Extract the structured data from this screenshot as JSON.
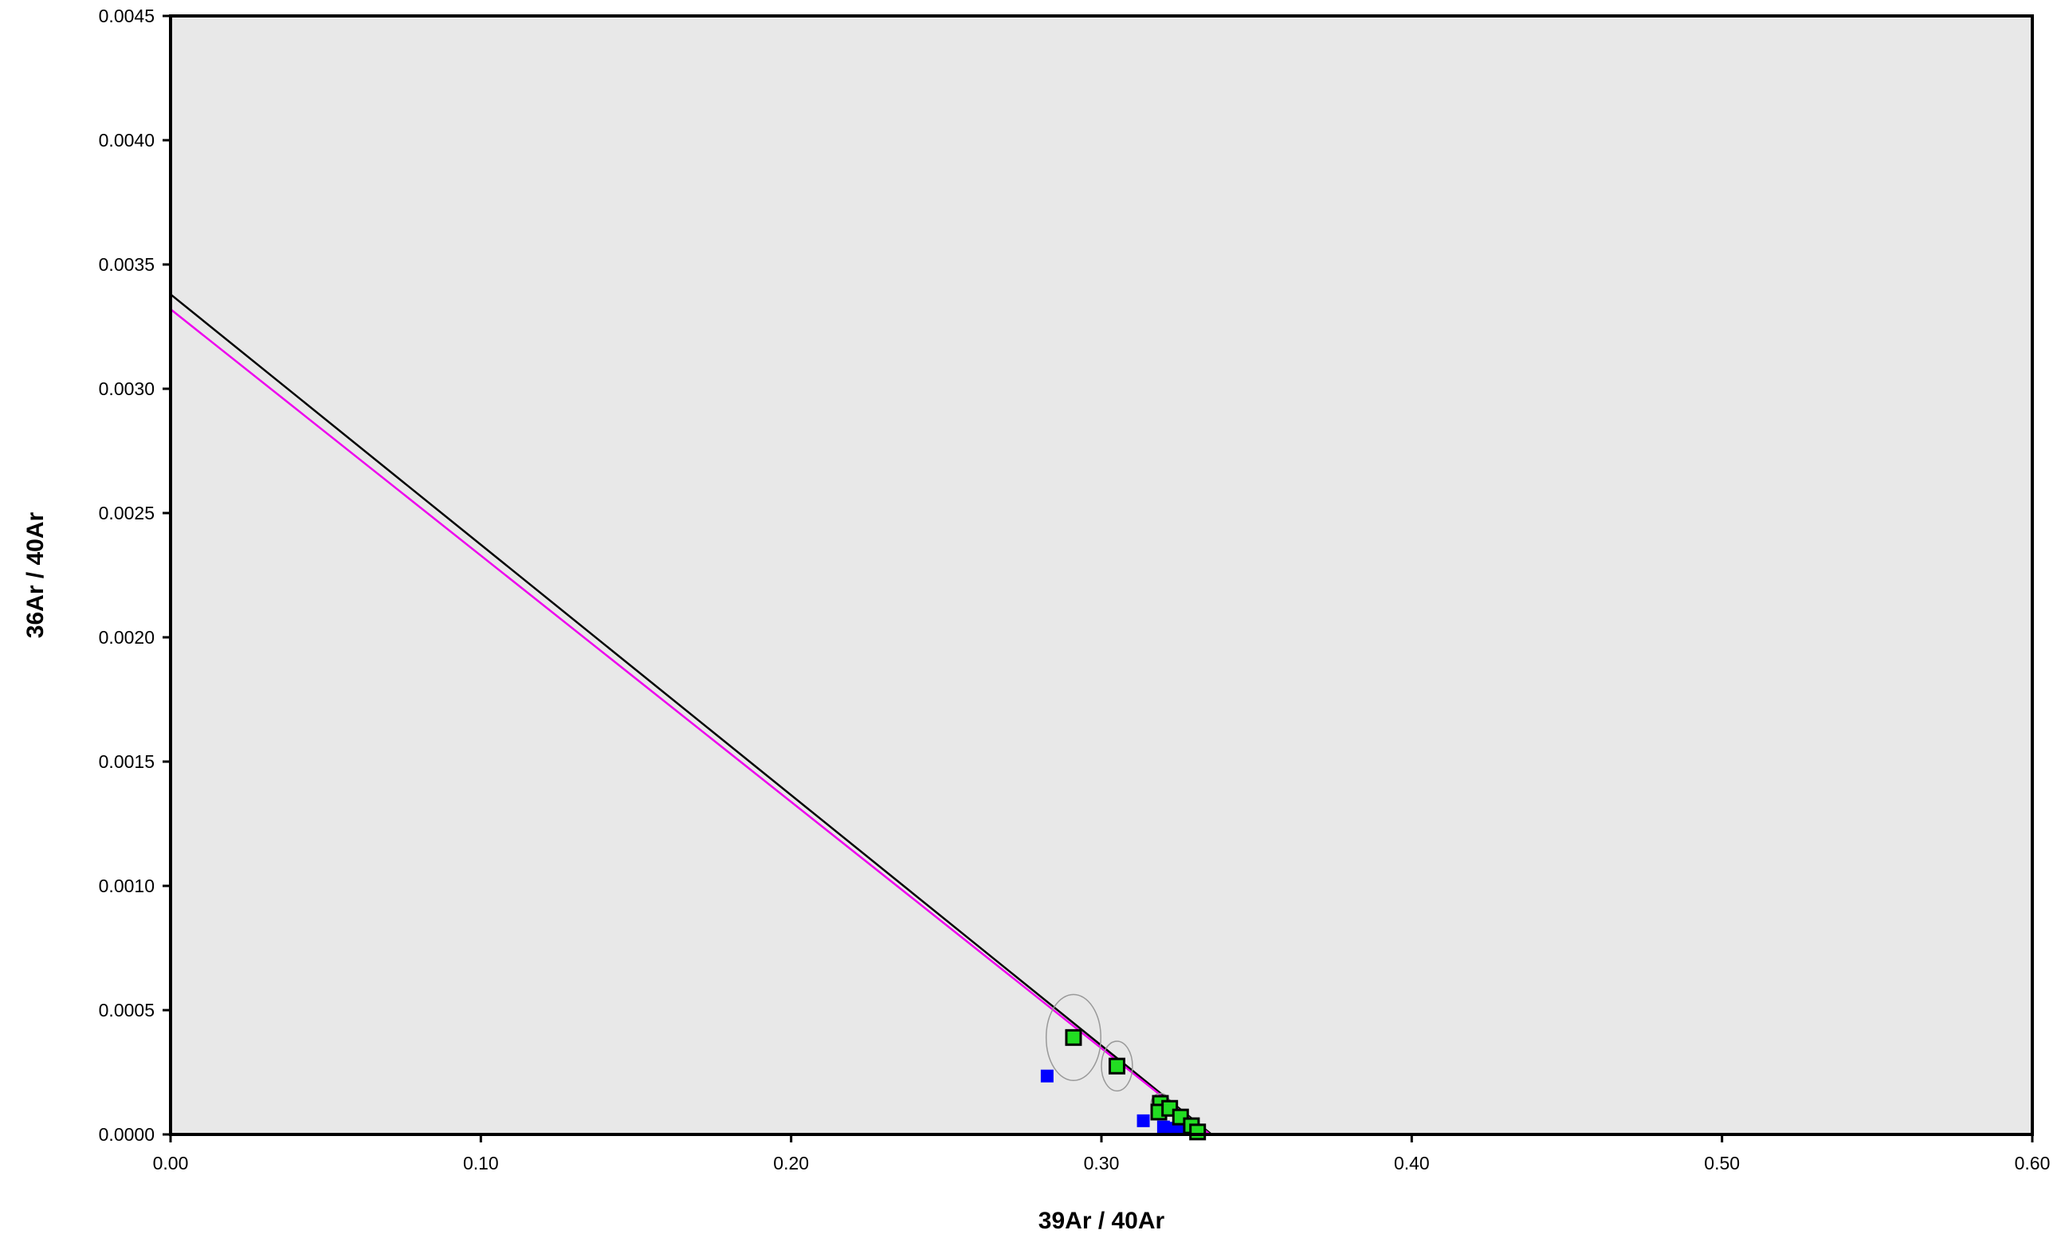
{
  "chart_data": {
    "type": "scatter",
    "title": "",
    "xlabel": "39Ar / 40Ar",
    "ylabel": "36Ar / 40Ar",
    "xlim": [
      0,
      0.6
    ],
    "ylim": [
      0,
      0.0045
    ],
    "x_ticks": [
      "0.00",
      "0.10",
      "0.20",
      "0.30",
      "0.40",
      "0.50",
      "0.60"
    ],
    "y_ticks": [
      "0.0000",
      "0.0005",
      "0.0010",
      "0.0015",
      "0.0020",
      "0.0025",
      "0.0030",
      "0.0035",
      "0.0040",
      "0.0045"
    ],
    "grid": false,
    "plot_background": "#e8e8e8",
    "series": [
      {
        "marker": "square-outlined",
        "color": "#22dd22",
        "points": [
          {
            "x": 0.291,
            "y": 0.00039,
            "ex": 0.0088,
            "ey": 0.000173
          },
          {
            "x": 0.305,
            "y": 0.000275,
            "ex": 0.005,
            "ey": 0.0001
          },
          {
            "x": 0.319,
            "y": 0.000125,
            "ex": 0.003,
            "ey": 4e-05
          },
          {
            "x": 0.3185,
            "y": 9e-05,
            "ex": 0.0015,
            "ey": 2e-05
          },
          {
            "x": 0.322,
            "y": 0.000105,
            "ex": 0.0015,
            "ey": 2e-05
          },
          {
            "x": 0.3255,
            "y": 7e-05,
            "ex": 0.0015,
            "ey": 2e-05
          },
          {
            "x": 0.329,
            "y": 3.5e-05,
            "ex": 0.001,
            "ey": 1.5e-05
          },
          {
            "x": 0.331,
            "y": 1e-05,
            "ex": 0.001,
            "ey": 1.5e-05
          }
        ]
      },
      {
        "marker": "square",
        "color": "#0000ff",
        "points": [
          {
            "x": 0.2825,
            "y": 0.000235
          },
          {
            "x": 0.3135,
            "y": 5.5e-05
          },
          {
            "x": 0.32,
            "y": 3e-05
          },
          {
            "x": 0.3235,
            "y": 2.5e-05
          },
          {
            "x": 0.3265,
            "y": 2e-05
          }
        ]
      },
      {
        "marker": "circle",
        "color": "#ff2222",
        "points": [
          {
            "x": 0.3285,
            "y": 2e-05
          }
        ]
      }
    ],
    "lines": [
      {
        "color": "#000000",
        "y_intercept": 0.00338,
        "x_intercept": 0.3355
      },
      {
        "color": "#ee00ee",
        "y_intercept": 0.00332,
        "x_intercept": 0.335
      }
    ]
  }
}
